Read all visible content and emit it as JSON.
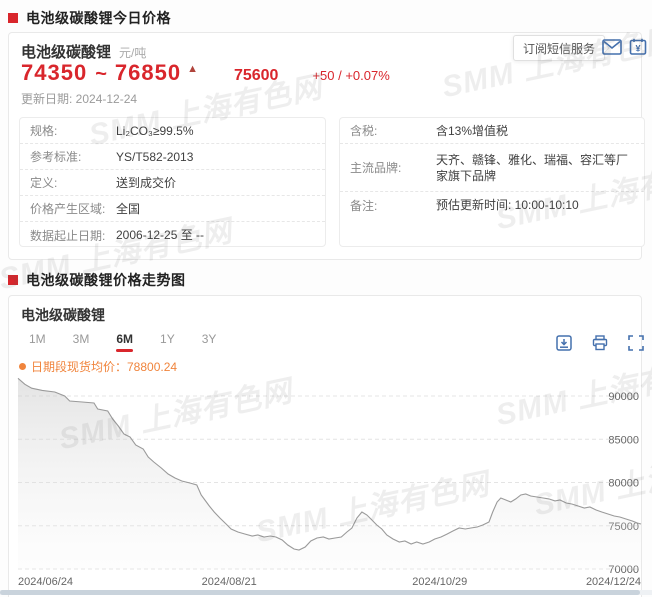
{
  "page": {
    "watermark": "SMM 上海有色网",
    "section1_title": "电池级碳酸锂今日价格",
    "section2_title": "电池级碳酸锂价格走势图"
  },
  "price_card": {
    "product": "电池级碳酸锂",
    "unit": "元/吨",
    "price_low": "74350",
    "price_sep": "~",
    "price_high": "76850",
    "arrow_up": "▲",
    "avg_price": "75600",
    "change_text": "+50 / +0.07%",
    "update_text": "更新日期: 2024-12-24",
    "subscribe_button": "订阅短信服务",
    "spec_table": [
      {
        "label": "规格:",
        "value": "Li₂CO₃≥99.5%"
      },
      {
        "label": "参考标准:",
        "value": "YS/T582-2013"
      },
      {
        "label": "定义:",
        "value": "送到成交价"
      },
      {
        "label": "价格产生区域:",
        "value": "全国"
      },
      {
        "label": "数据起止日期:",
        "value": "2006-12-25 至 --"
      }
    ],
    "info_table": [
      {
        "label": "含税:",
        "value": "含13%增值税"
      },
      {
        "label": "主流品牌:",
        "value": "天齐、赣锋、雅化、瑞福、容汇等厂家旗下品牌"
      },
      {
        "label": "备注:",
        "value": "预估更新时间: 10:00-10:10"
      }
    ]
  },
  "chart_data": {
    "type": "area",
    "title": "电池级碳酸锂",
    "tabs": [
      "1M",
      "3M",
      "6M",
      "1Y",
      "3Y"
    ],
    "active_tab": "6M",
    "legend_label": "日期段现货均价：78800.24",
    "series_name": "日期段现货均价",
    "latest_avg": 78800.24,
    "ylabel": "元/吨",
    "ylim": [
      70000,
      92430
    ],
    "y_ticks": [
      90000,
      85000,
      80000,
      75000,
      70000
    ],
    "x_ticks": [
      {
        "label": "2024/06/24",
        "pos": 0,
        "align": "start"
      },
      {
        "label": "2024/08/21",
        "pos": 0.339,
        "align": "middle"
      },
      {
        "label": "2024/10/29",
        "pos": 0.677,
        "align": "middle"
      },
      {
        "label": "2024/12/24",
        "pos": 1,
        "align": "end"
      }
    ],
    "grid": true,
    "legend_position": "top-left",
    "line_color": "#9a9a9a",
    "series": [
      {
        "name": "日期段现货均价",
        "points": [
          [
            0.0,
            92050
          ],
          [
            0.011,
            91350
          ],
          [
            0.022,
            90900
          ],
          [
            0.039,
            90650
          ],
          [
            0.059,
            90460
          ],
          [
            0.075,
            90000
          ],
          [
            0.083,
            89420
          ],
          [
            0.103,
            89310
          ],
          [
            0.122,
            89190
          ],
          [
            0.128,
            88500
          ],
          [
            0.144,
            88270
          ],
          [
            0.152,
            87340
          ],
          [
            0.161,
            86530
          ],
          [
            0.17,
            85610
          ],
          [
            0.18,
            85260
          ],
          [
            0.189,
            84340
          ],
          [
            0.201,
            83870
          ],
          [
            0.209,
            82950
          ],
          [
            0.218,
            82370
          ],
          [
            0.23,
            81680
          ],
          [
            0.241,
            80980
          ],
          [
            0.252,
            80520
          ],
          [
            0.263,
            80170
          ],
          [
            0.276,
            79940
          ],
          [
            0.287,
            79710
          ],
          [
            0.294,
            78560
          ],
          [
            0.3,
            77980
          ],
          [
            0.307,
            77280
          ],
          [
            0.315,
            76590
          ],
          [
            0.324,
            75900
          ],
          [
            0.334,
            75200
          ],
          [
            0.342,
            74620
          ],
          [
            0.353,
            74280
          ],
          [
            0.364,
            74050
          ],
          [
            0.376,
            73820
          ],
          [
            0.385,
            73930
          ],
          [
            0.395,
            73700
          ],
          [
            0.405,
            73820
          ],
          [
            0.414,
            73700
          ],
          [
            0.424,
            73350
          ],
          [
            0.433,
            72770
          ],
          [
            0.443,
            72310
          ],
          [
            0.451,
            72200
          ],
          [
            0.461,
            72540
          ],
          [
            0.47,
            73240
          ],
          [
            0.48,
            73580
          ],
          [
            0.49,
            73700
          ],
          [
            0.499,
            73470
          ],
          [
            0.509,
            73580
          ],
          [
            0.519,
            73700
          ],
          [
            0.528,
            74280
          ],
          [
            0.536,
            74740
          ],
          [
            0.544,
            75900
          ],
          [
            0.552,
            76590
          ],
          [
            0.56,
            76240
          ],
          [
            0.568,
            75670
          ],
          [
            0.576,
            75090
          ],
          [
            0.584,
            74620
          ],
          [
            0.592,
            73930
          ],
          [
            0.602,
            73470
          ],
          [
            0.612,
            73120
          ],
          [
            0.621,
            73240
          ],
          [
            0.631,
            72890
          ],
          [
            0.64,
            73120
          ],
          [
            0.65,
            72890
          ],
          [
            0.66,
            73120
          ],
          [
            0.669,
            73470
          ],
          [
            0.679,
            73700
          ],
          [
            0.689,
            74050
          ],
          [
            0.698,
            74390
          ],
          [
            0.708,
            74740
          ],
          [
            0.718,
            74620
          ],
          [
            0.727,
            74740
          ],
          [
            0.737,
            74860
          ],
          [
            0.746,
            75090
          ],
          [
            0.756,
            75430
          ],
          [
            0.762,
            76590
          ],
          [
            0.769,
            77750
          ],
          [
            0.775,
            78210
          ],
          [
            0.783,
            77980
          ],
          [
            0.791,
            77750
          ],
          [
            0.799,
            78100
          ],
          [
            0.807,
            78560
          ],
          [
            0.815,
            78670
          ],
          [
            0.823,
            78440
          ],
          [
            0.833,
            78330
          ],
          [
            0.843,
            78210
          ],
          [
            0.852,
            78100
          ],
          [
            0.862,
            77870
          ],
          [
            0.87,
            77980
          ],
          [
            0.88,
            77630
          ],
          [
            0.889,
            77520
          ],
          [
            0.899,
            77280
          ],
          [
            0.909,
            77050
          ],
          [
            0.918,
            77170
          ],
          [
            0.928,
            76820
          ],
          [
            0.937,
            76590
          ],
          [
            0.947,
            76360
          ],
          [
            0.957,
            76130
          ],
          [
            0.966,
            76010
          ],
          [
            0.976,
            75780
          ],
          [
            0.986,
            75550
          ],
          [
            0.994,
            75320
          ],
          [
            1.0,
            75200
          ]
        ]
      }
    ]
  },
  "toolbar": {
    "icons": [
      "save-image",
      "print",
      "fullscreen"
    ]
  }
}
